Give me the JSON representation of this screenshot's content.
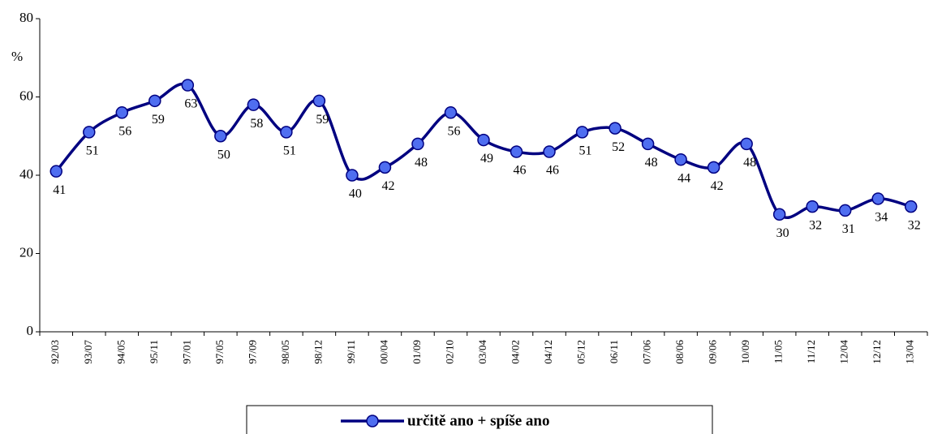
{
  "chart_data": {
    "type": "line",
    "y_label": "%",
    "categories": [
      "92/03",
      "93/07",
      "94/05",
      "95/11",
      "97/01",
      "97/05",
      "97/09",
      "98/05",
      "98/12",
      "99/11",
      "00/04",
      "01/09",
      "02/10",
      "03/04",
      "04/02",
      "04/12",
      "05/12",
      "06/11",
      "07/06",
      "08/06",
      "09/06",
      "10/09",
      "11/05",
      "11/12",
      "12/04",
      "12/12",
      "13/04"
    ],
    "series": [
      {
        "name": "určitě ano + spíše ano",
        "color": "#000080",
        "marker_color": "#4f6ef0",
        "values": [
          41,
          51,
          56,
          59,
          63,
          50,
          58,
          51,
          59,
          40,
          42,
          48,
          56,
          49,
          46,
          46,
          51,
          52,
          48,
          44,
          42,
          48,
          30,
          32,
          31,
          34,
          32
        ]
      }
    ],
    "ylim": [
      0,
      80
    ],
    "yticks": [
      0,
      20,
      40,
      60,
      80
    ],
    "grid": false
  }
}
